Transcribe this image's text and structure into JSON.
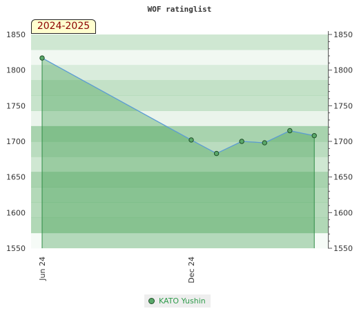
{
  "chart_data": {
    "type": "area",
    "title": "WOF ratinglist",
    "season_label": "2024-2025",
    "x_ticks": [
      "Jun 24",
      "Dec 24"
    ],
    "y_ticks": [
      1550,
      1600,
      1650,
      1700,
      1750,
      1800,
      1850
    ],
    "ylim": [
      1550,
      1850
    ],
    "x": [
      "2024-06-01",
      "2024-12-01",
      "2025-01-01",
      "2025-02-01",
      "2025-03-01",
      "2025-04-01",
      "2025-05-01"
    ],
    "series": [
      {
        "name": "KATO Yushin",
        "values": [
          1817,
          1702,
          1683,
          1700,
          1698,
          1715,
          1708
        ]
      }
    ],
    "band_levels": [
      0.28,
      0.08,
      0.22,
      0.35,
      0.32,
      0.12,
      0.5,
      0.4,
      0.28,
      0.5,
      0.44,
      0.42,
      0.45,
      0.05
    ],
    "grid": false,
    "legend_position": "bottom-center",
    "colors": {
      "line": "#5b9bd5",
      "fill": "#3a9a4a",
      "marker": "#5aa86a",
      "marker_stroke": "#1d4d26",
      "drop_line": "#2e8b45",
      "band": "#52a85e"
    }
  }
}
